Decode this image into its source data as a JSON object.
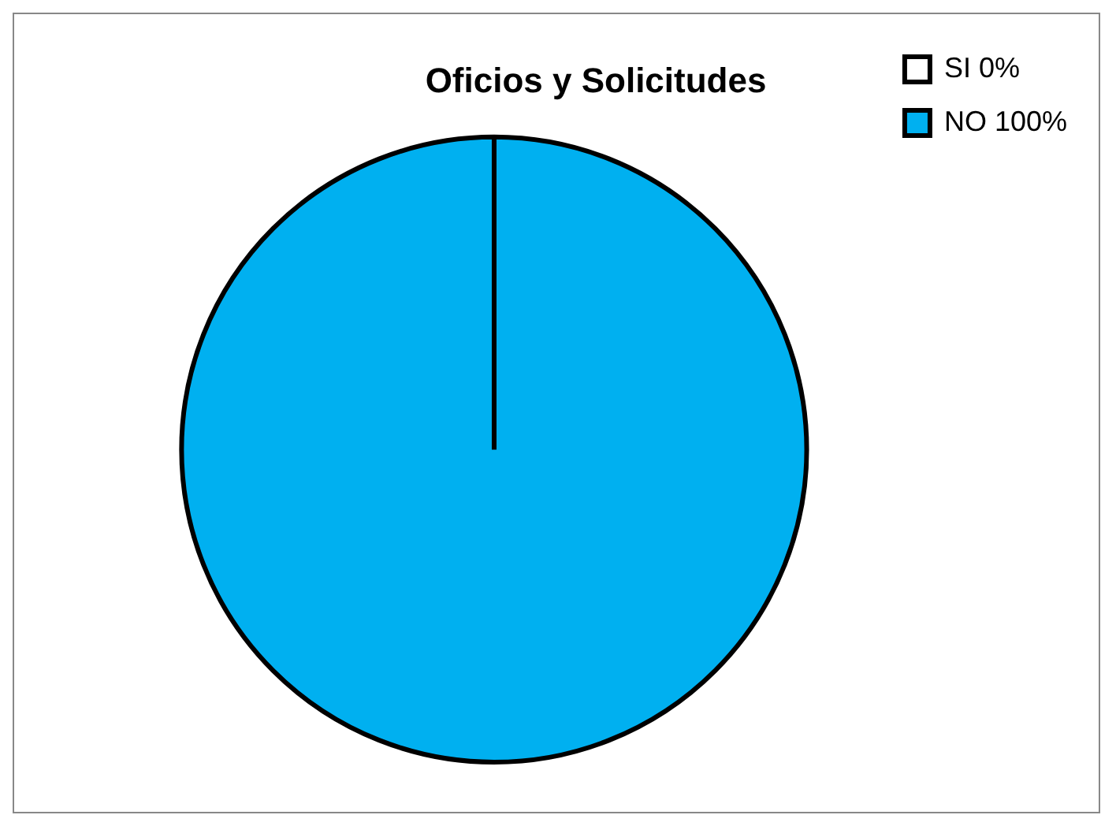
{
  "chart_data": {
    "type": "pie",
    "title": "Oficios y Solicitudes",
    "categories": [
      "SI 0%",
      "NO 100%"
    ],
    "values": [
      0,
      100
    ],
    "colors": [
      "#ffffff",
      "#00b0f0"
    ],
    "legend": "top right"
  }
}
